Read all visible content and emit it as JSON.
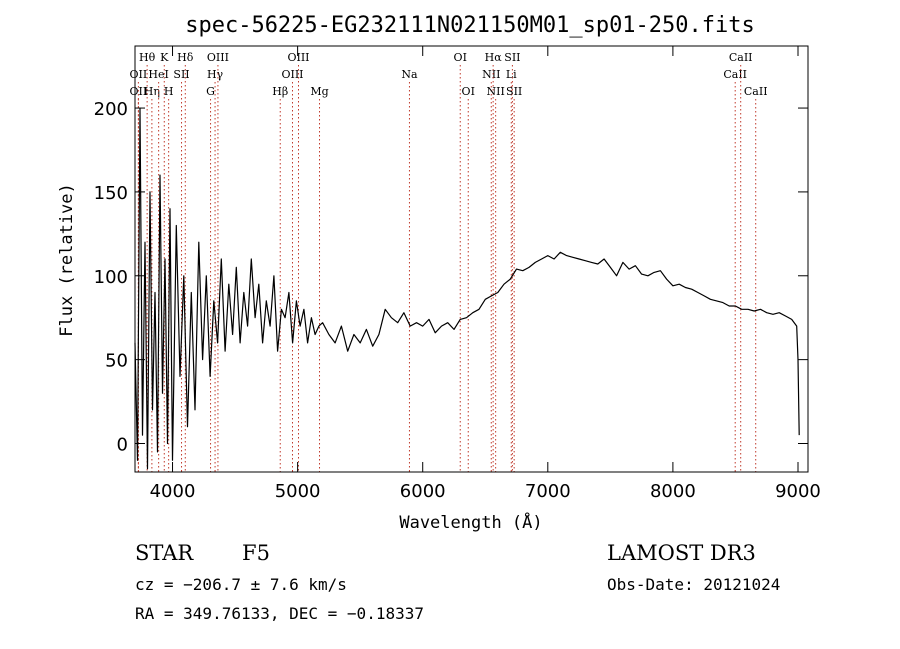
{
  "chart_data": {
    "type": "line",
    "title": "spec-56225-EG232111N021150M01_sp01-250.fits",
    "xlabel": "Wavelength (Å)",
    "ylabel": "Flux (relative)",
    "xlim": [
      3700,
      9080
    ],
    "ylim": [
      -17,
      237
    ],
    "xticks": [
      4000,
      5000,
      6000,
      7000,
      8000,
      9000
    ],
    "yticks": [
      0,
      50,
      100,
      150,
      200
    ],
    "series": [
      {
        "name": "flux",
        "color": "#000000",
        "x": [
          3700,
          3720,
          3740,
          3760,
          3780,
          3800,
          3820,
          3840,
          3860,
          3880,
          3900,
          3920,
          3940,
          3960,
          3980,
          4000,
          4030,
          4060,
          4090,
          4120,
          4150,
          4180,
          4210,
          4240,
          4270,
          4300,
          4330,
          4360,
          4390,
          4420,
          4450,
          4480,
          4510,
          4540,
          4570,
          4600,
          4630,
          4660,
          4690,
          4720,
          4750,
          4780,
          4810,
          4840,
          4870,
          4900,
          4930,
          4960,
          4990,
          5020,
          5050,
          5080,
          5110,
          5140,
          5170,
          5200,
          5250,
          5300,
          5350,
          5400,
          5450,
          5500,
          5550,
          5600,
          5650,
          5700,
          5750,
          5800,
          5850,
          5900,
          5950,
          6000,
          6050,
          6100,
          6150,
          6200,
          6250,
          6300,
          6350,
          6400,
          6450,
          6500,
          6550,
          6600,
          6650,
          6700,
          6750,
          6800,
          6850,
          6900,
          6950,
          7000,
          7050,
          7100,
          7150,
          7200,
          7250,
          7300,
          7350,
          7400,
          7450,
          7500,
          7550,
          7600,
          7650,
          7700,
          7750,
          7800,
          7850,
          7900,
          7950,
          8000,
          8050,
          8100,
          8150,
          8200,
          8250,
          8300,
          8350,
          8400,
          8450,
          8500,
          8550,
          8600,
          8650,
          8700,
          8750,
          8800,
          8850,
          8900,
          8950,
          8990,
          9000,
          9010
        ],
        "values": [
          60,
          -10,
          200,
          5,
          120,
          -15,
          150,
          20,
          90,
          -5,
          160,
          30,
          110,
          0,
          140,
          -10,
          130,
          40,
          100,
          10,
          90,
          20,
          120,
          50,
          100,
          40,
          85,
          60,
          110,
          55,
          95,
          65,
          105,
          60,
          90,
          70,
          110,
          75,
          95,
          60,
          85,
          70,
          100,
          55,
          80,
          75,
          90,
          60,
          85,
          70,
          80,
          60,
          75,
          65,
          70,
          72,
          65,
          60,
          70,
          55,
          65,
          60,
          68,
          58,
          65,
          80,
          75,
          72,
          78,
          70,
          72,
          70,
          74,
          66,
          70,
          72,
          68,
          74,
          75,
          78,
          80,
          86,
          88,
          90,
          95,
          98,
          104,
          103,
          105,
          108,
          110,
          112,
          110,
          114,
          112,
          111,
          110,
          109,
          108,
          107,
          110,
          105,
          100,
          108,
          104,
          106,
          101,
          100,
          102,
          103,
          98,
          94,
          95,
          93,
          92,
          90,
          88,
          86,
          85,
          84,
          82,
          82,
          80,
          80,
          79,
          80,
          78,
          77,
          78,
          76,
          74,
          70,
          50,
          5
        ]
      }
    ],
    "lines": [
      {
        "label": "OII",
        "wl": 3727,
        "row": 3
      },
      {
        "label": "Hθ",
        "wl": 3797,
        "row": 1
      },
      {
        "label": "OII",
        "wl": 3727,
        "row": 2
      },
      {
        "label": "Hη",
        "wl": 3835,
        "row": 3
      },
      {
        "label": "K",
        "wl": 3934,
        "row": 1
      },
      {
        "label": "HeI",
        "wl": 3889,
        "row": 2
      },
      {
        "label": "H",
        "wl": 3969,
        "row": 3
      },
      {
        "label": "Hδ",
        "wl": 4102,
        "row": 1
      },
      {
        "label": "SII",
        "wl": 4072,
        "row": 2
      },
      {
        "label": "G",
        "wl": 4304,
        "row": 3
      },
      {
        "label": "Hγ",
        "wl": 4340,
        "row": 2
      },
      {
        "label": "OIII",
        "wl": 4363,
        "row": 1
      },
      {
        "label": "Hβ",
        "wl": 4861,
        "row": 3
      },
      {
        "label": "OIII",
        "wl": 4959,
        "row": 2
      },
      {
        "label": "OIII",
        "wl": 5007,
        "row": 1
      },
      {
        "label": "Mg",
        "wl": 5175,
        "row": 3
      },
      {
        "label": "Na",
        "wl": 5894,
        "row": 2
      },
      {
        "label": "OI",
        "wl": 6300,
        "row": 1
      },
      {
        "label": "OI",
        "wl": 6364,
        "row": 3
      },
      {
        "label": "NII",
        "wl": 6548,
        "row": 2
      },
      {
        "label": "Hα",
        "wl": 6563,
        "row": 1
      },
      {
        "label": "NII",
        "wl": 6583,
        "row": 3
      },
      {
        "label": "Li",
        "wl": 6708,
        "row": 2
      },
      {
        "label": "SII",
        "wl": 6717,
        "row": 1
      },
      {
        "label": "SII",
        "wl": 6731,
        "row": 3
      },
      {
        "label": "CaII",
        "wl": 8498,
        "row": 2
      },
      {
        "label": "CaII",
        "wl": 8542,
        "row": 1
      },
      {
        "label": "CaII",
        "wl": 8662,
        "row": 3
      }
    ]
  },
  "info": {
    "class_label": "STAR",
    "subclass": "F5",
    "survey": "LAMOST DR3",
    "cz": "cz = −206.7 ± 7.6 km/s",
    "obs_date": "Obs-Date: 20121024",
    "coords": "RA = 349.76133, DEC =  −0.18337"
  }
}
